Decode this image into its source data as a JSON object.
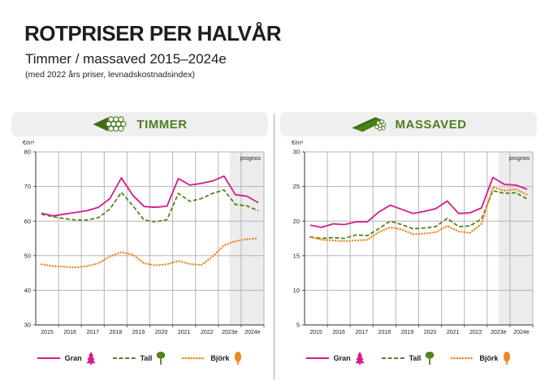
{
  "header": {
    "title": "ROTPRISER PER HALVÅR",
    "subtitle": "Timmer / massaved 2015–2024e",
    "note": "(med 2022 års priser, levnadskostnadsindex)"
  },
  "colors": {
    "gran": "#d8198c",
    "tall": "#55831c",
    "bjork": "#ee8722",
    "header_green": "#4e7e1e",
    "header_bg": "#efefef",
    "grid": "#b5b5b5",
    "axis": "#555555",
    "prognos_shade": "#ececec",
    "text": "#1d1d1b"
  },
  "legend": {
    "items": [
      {
        "label": "Gran",
        "color": "gran",
        "style": "solid",
        "icon": "spruce-tree-icon"
      },
      {
        "label": "Tall",
        "color": "tall",
        "style": "dashed",
        "icon": "pine-tree-icon"
      },
      {
        "label": "Björk",
        "color": "bjork",
        "style": "dotted",
        "icon": "birch-tree-icon"
      }
    ]
  },
  "chart_data": [
    {
      "type": "line",
      "title": "TIMMER",
      "unit": "€/m³",
      "prognos_label": "prognos",
      "x_labels": [
        "2015",
        "2016",
        "2017",
        "2018",
        "2019",
        "2020",
        "2021",
        "2022",
        "2023e",
        "2024e"
      ],
      "points_per_year": 2,
      "ylim": [
        30,
        80
      ],
      "ytick": 10,
      "grid": true,
      "forecast_start_year_fraction": 8.5,
      "legend_position": "bottom",
      "series": [
        {
          "name": "Gran",
          "color": "gran",
          "style": "solid",
          "values": [
            62.3,
            61.5,
            62.0,
            62.5,
            63.0,
            64.0,
            66.5,
            72.5,
            67.5,
            64.2,
            64.0,
            64.3,
            72.3,
            70.4,
            70.9,
            71.6,
            73.0,
            67.6,
            67.2,
            65.3
          ]
        },
        {
          "name": "Tall",
          "color": "tall",
          "style": "dashed",
          "values": [
            62.0,
            61.3,
            60.7,
            60.3,
            60.3,
            61.0,
            63.5,
            68.3,
            64.5,
            60.3,
            59.8,
            60.4,
            68.0,
            65.7,
            66.5,
            68.0,
            69.0,
            64.8,
            64.4,
            63.0
          ]
        },
        {
          "name": "Björk",
          "color": "bjork",
          "style": "dotted",
          "values": [
            47.5,
            47.0,
            46.8,
            46.6,
            47.0,
            47.8,
            49.8,
            51.0,
            50.3,
            47.8,
            47.2,
            47.5,
            48.5,
            47.6,
            47.3,
            49.8,
            53.0,
            54.2,
            54.8,
            55.0
          ]
        }
      ]
    },
    {
      "type": "line",
      "title": "MASSAVED",
      "unit": "€/m³",
      "prognos_label": "prognos",
      "x_labels": [
        "2015",
        "2016",
        "2017",
        "2018",
        "2019",
        "2020",
        "2021",
        "2022",
        "2023e",
        "2024e"
      ],
      "points_per_year": 2,
      "ylim": [
        5,
        30
      ],
      "ytick": 5,
      "grid": true,
      "forecast_start_year_fraction": 8.5,
      "legend_position": "bottom",
      "series": [
        {
          "name": "Gran",
          "color": "gran",
          "style": "solid",
          "values": [
            19.4,
            19.1,
            19.6,
            19.5,
            19.9,
            19.9,
            21.3,
            22.3,
            21.7,
            21.1,
            21.4,
            21.8,
            22.9,
            21.1,
            21.2,
            21.9,
            26.3,
            25.3,
            25.2,
            24.6
          ]
        },
        {
          "name": "Tall",
          "color": "tall",
          "style": "dashed",
          "values": [
            17.7,
            17.5,
            17.6,
            17.5,
            18.0,
            17.9,
            18.9,
            20.0,
            19.5,
            18.9,
            19.0,
            19.2,
            20.4,
            19.2,
            19.3,
            20.3,
            24.4,
            24.0,
            24.1,
            23.2
          ]
        },
        {
          "name": "Björk",
          "color": "bjork",
          "style": "dotted",
          "values": [
            17.7,
            17.3,
            17.2,
            17.1,
            17.2,
            17.3,
            18.4,
            19.1,
            18.8,
            18.1,
            18.2,
            18.4,
            19.3,
            18.5,
            18.3,
            19.6,
            24.9,
            24.4,
            24.6,
            23.8
          ]
        }
      ]
    }
  ]
}
